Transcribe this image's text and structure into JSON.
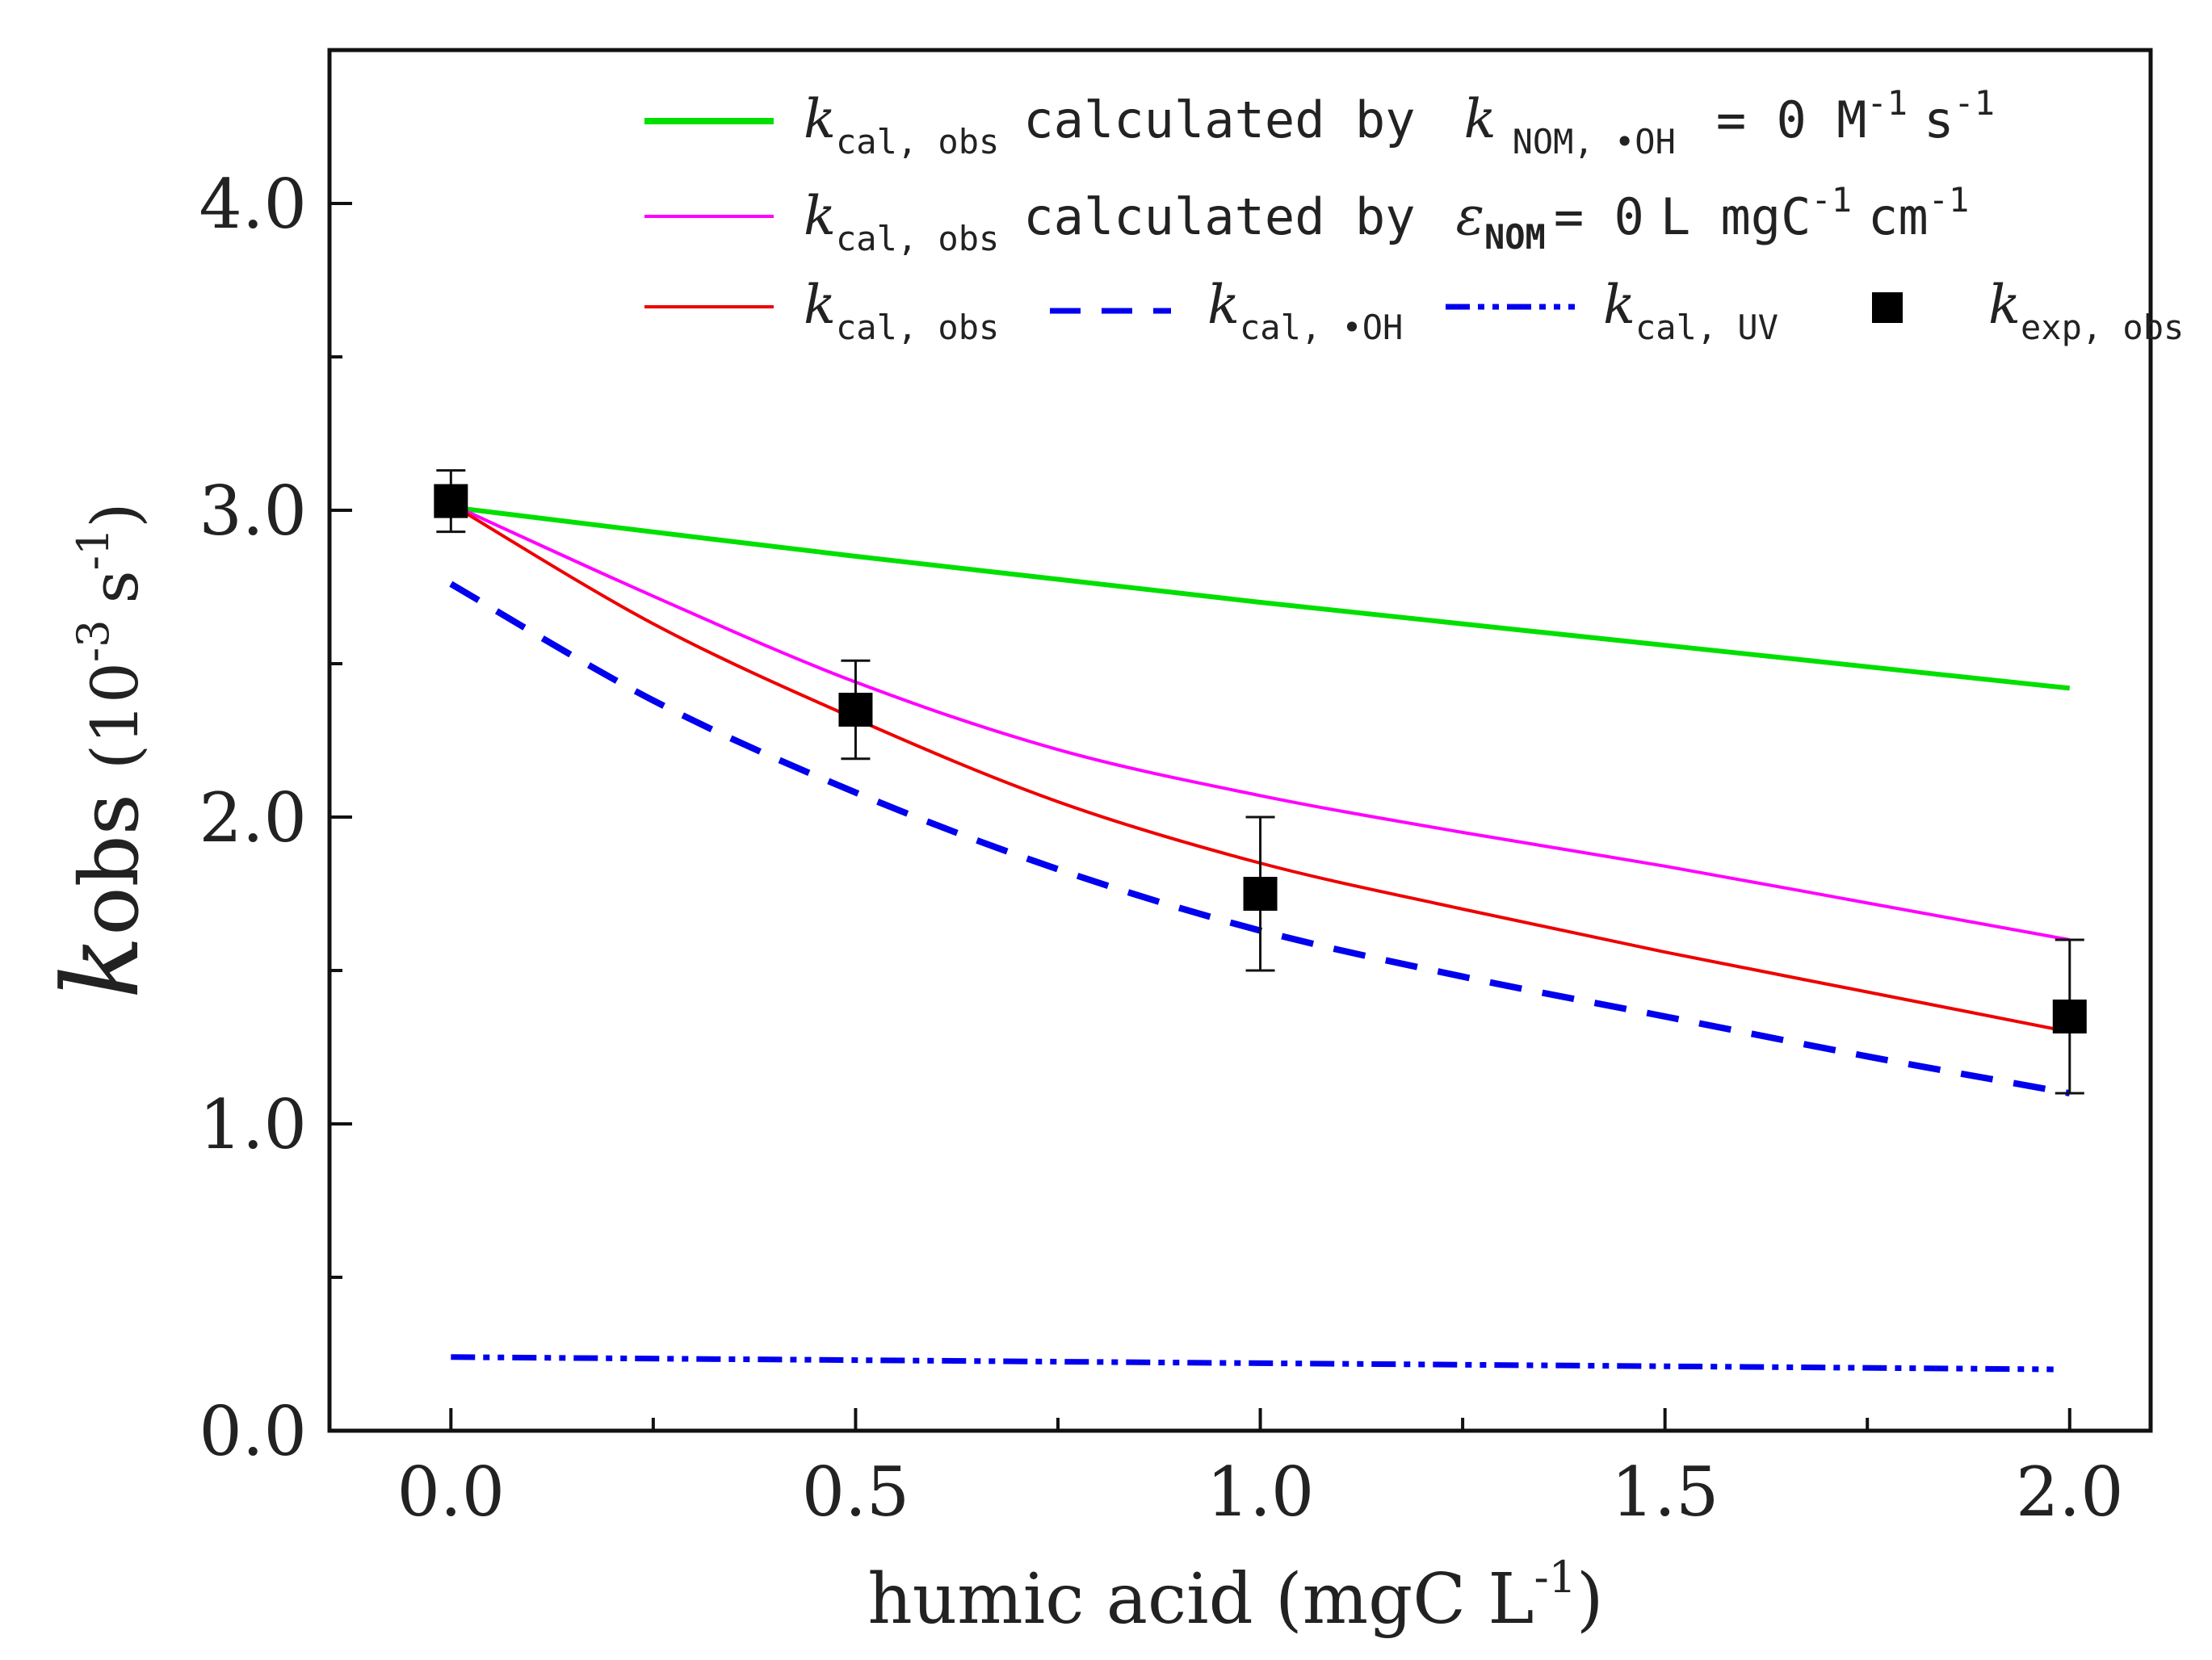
{
  "chart_data": {
    "type": "line",
    "title": "",
    "xlabel": "humic acid (mgC L",
    "xlabel_sup": "-1",
    "xlabel_close": ")",
    "ylabel_main": "k",
    "ylabel_sub": "obs",
    "ylabel_units": "(10",
    "ylabel_units_sup": "-3",
    "ylabel_units_tail": "s",
    "ylabel_units_tail_sup": "-1",
    "ylabel_units_close": ")",
    "xlim": [
      -0.15,
      2.1
    ],
    "ylim": [
      0.0,
      4.5
    ],
    "x_ticks": [
      0.0,
      0.5,
      1.0,
      1.5,
      2.0
    ],
    "x_tick_labels": [
      "0.0",
      "0.5",
      "1.0",
      "1.5",
      "2.0"
    ],
    "x_minor_ticks": [
      0.25,
      0.75,
      1.25,
      1.75
    ],
    "y_ticks": [
      0.0,
      1.0,
      2.0,
      3.0,
      4.0
    ],
    "y_tick_labels": [
      "0.0",
      "1.0",
      "2.0",
      "3.0",
      "4.0"
    ],
    "y_minor_ticks": [
      0.5,
      1.5,
      2.5,
      3.5
    ],
    "grid": false,
    "legend_position": "top-right",
    "series": [
      {
        "id": "green",
        "name": "k_cal,obs calculated by k_NOM,•OH = 0 M-1 s-1",
        "color": "#00e000",
        "style": "solid",
        "x": [
          0.0,
          0.5,
          1.0,
          1.5,
          2.0
        ],
        "y": [
          3.01,
          2.85,
          2.7,
          2.56,
          2.42
        ]
      },
      {
        "id": "magenta",
        "name": "k_cal,obs calculated by ε_NOM = 0 L mgC-1 cm-1",
        "color": "#ff00ff",
        "style": "solid",
        "x": [
          0.0,
          0.25,
          0.5,
          0.75,
          1.0,
          1.25,
          1.5,
          1.75,
          2.0
        ],
        "y": [
          3.02,
          2.72,
          2.44,
          2.22,
          2.07,
          1.95,
          1.84,
          1.72,
          1.6
        ]
      },
      {
        "id": "red",
        "name": "k_cal,obs",
        "color": "#ee0000",
        "style": "solid",
        "x": [
          0.0,
          0.25,
          0.5,
          0.75,
          1.0,
          1.25,
          1.5,
          1.75,
          2.0
        ],
        "y": [
          3.02,
          2.63,
          2.32,
          2.05,
          1.85,
          1.7,
          1.56,
          1.43,
          1.3
        ]
      },
      {
        "id": "blue-dash",
        "name": "k_cal,•OH",
        "color": "#0000ee",
        "style": "dashed",
        "x": [
          0.0,
          0.25,
          0.5,
          0.75,
          1.0,
          1.25,
          1.5,
          1.75,
          2.0
        ],
        "y": [
          2.76,
          2.38,
          2.08,
          1.83,
          1.63,
          1.48,
          1.35,
          1.22,
          1.1
        ]
      },
      {
        "id": "blue-dashdot",
        "name": "k_cal,UV",
        "color": "#0000ee",
        "style": "dashdotdot",
        "x": [
          0.0,
          0.5,
          1.0,
          1.5,
          1.98
        ],
        "y": [
          0.24,
          0.23,
          0.22,
          0.21,
          0.2
        ]
      }
    ],
    "experimental": {
      "name": "k_exp,obs",
      "color": "#000000",
      "x": [
        0.0,
        0.5,
        1.0,
        2.0
      ],
      "y": [
        3.03,
        2.35,
        1.75,
        1.35
      ],
      "err": [
        0.1,
        0.16,
        0.25,
        0.25
      ]
    },
    "legend": {
      "row1": {
        "sym": "k",
        "sub": "cal, obs",
        "text": "calculated by",
        "sym2": "k",
        "sub2": "NOM, •OH",
        "eq": "= 0 M",
        "sup1": "-1",
        "s": "s",
        "sup2": "-1"
      },
      "row2": {
        "sym": "k",
        "sub": "cal, obs",
        "text": "calculated by",
        "eps": "ε",
        "eps_sub": "NOM",
        "eq": "= 0",
        "unit": "L mgC",
        "sup1": "-1",
        "cm": "cm",
        "sup2": "-1"
      },
      "row3": [
        {
          "sym": "k",
          "sub": "cal, obs"
        },
        {
          "sym": "k",
          "sub": "cal, •OH"
        },
        {
          "sym": "k",
          "sub": "cal, UV"
        },
        {
          "sym": "k",
          "sub": "exp, obs"
        }
      ]
    }
  }
}
